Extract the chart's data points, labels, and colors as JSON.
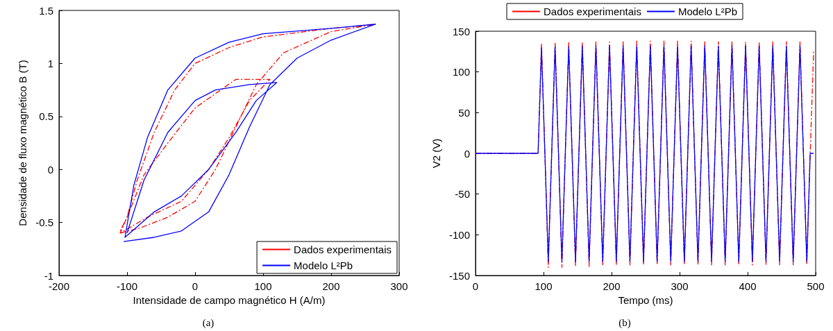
{
  "chart_data": [
    {
      "type": "line",
      "xlabel": "Intensidade de campo magnético H (A/m)",
      "ylabel": "Densidade de fluxo magnético B (T)",
      "annotations": [
        "(a)"
      ],
      "xlim": [
        -200,
        300
      ],
      "xticks": [
        -200,
        -100,
        0,
        100,
        200,
        300
      ],
      "ylim": [
        -1,
        1.5
      ],
      "yticks": [
        -1,
        -0.5,
        0,
        0.5,
        1,
        1.5
      ],
      "grid": false,
      "legend": "bottom right",
      "marker": "none",
      "series": [
        {
          "name": "Dados experimentais",
          "color": "#ff0000",
          "line_style": "dashed",
          "x": [
            -110,
            -80,
            -40,
            0,
            30,
            60,
            90,
            130,
            200,
            265,
            200,
            100,
            50,
            0,
            -30,
            -60,
            -85,
            -100,
            -110,
            -70,
            -20,
            20,
            50,
            80,
            110,
            60,
            0,
            -40,
            -75,
            -100,
            -110
          ],
          "values": [
            -0.6,
            -0.55,
            -0.45,
            -0.3,
            0,
            0.4,
            0.8,
            1.1,
            1.3,
            1.37,
            1.33,
            1.25,
            1.15,
            1.0,
            0.75,
            0.35,
            -0.1,
            -0.45,
            -0.6,
            -0.45,
            -0.3,
            0,
            0.3,
            0.65,
            0.85,
            0.85,
            0.58,
            0.25,
            -0.05,
            -0.45,
            -0.58
          ]
        },
        {
          "name": "Modelo L²Pb",
          "color": "#0000ff",
          "line_style": "solid",
          "x": [
            -105,
            -60,
            -20,
            20,
            50,
            80,
            110,
            150,
            200,
            265,
            200,
            100,
            50,
            0,
            -40,
            -70,
            -90,
            -103,
            -60,
            -20,
            20,
            60,
            90,
            120,
            80,
            30,
            0,
            -40,
            -75,
            -100
          ],
          "values": [
            -0.68,
            -0.64,
            -0.58,
            -0.4,
            -0.05,
            0.4,
            0.8,
            1.05,
            1.22,
            1.37,
            1.33,
            1.28,
            1.2,
            1.05,
            0.75,
            0.3,
            -0.15,
            -0.64,
            -0.4,
            -0.25,
            0,
            0.35,
            0.65,
            0.82,
            0.8,
            0.75,
            0.65,
            0.35,
            -0.1,
            -0.6
          ]
        }
      ]
    },
    {
      "type": "line",
      "xlabel": "Tempo (ms)",
      "ylabel": "V2 (V)",
      "annotations": [
        "(b)"
      ],
      "xlim": [
        0,
        500
      ],
      "xticks": [
        0,
        100,
        200,
        300,
        400,
        500
      ],
      "ylim": [
        -150,
        150
      ],
      "yticks": [
        -150,
        -100,
        -50,
        0,
        50,
        100,
        150
      ],
      "grid": false,
      "legend": "top",
      "marker": "none",
      "x": [
        0,
        92,
        97,
        102,
        107,
        112,
        117,
        122,
        127,
        132,
        137,
        142,
        147,
        152,
        157,
        162,
        167,
        172,
        177,
        182,
        187,
        192,
        197,
        202,
        207,
        212,
        217,
        222,
        227,
        232,
        237,
        242,
        247,
        252,
        257,
        262,
        267,
        272,
        277,
        282,
        287,
        292,
        297,
        302,
        307,
        312,
        317,
        322,
        327,
        332,
        337,
        342,
        347,
        352,
        357,
        362,
        367,
        372,
        377,
        382,
        387,
        392,
        397,
        402,
        407,
        412,
        417,
        422,
        427,
        432,
        437,
        442,
        447,
        452,
        457,
        462,
        467,
        472,
        477,
        482,
        487,
        492,
        497
      ],
      "series": [
        {
          "name": "Dados experimentais",
          "color": "#ff0000",
          "line_style": "dashed",
          "values": [
            0,
            0,
            135,
            0,
            -140,
            0,
            136,
            0,
            -140,
            0,
            136,
            0,
            -139,
            0,
            137,
            0,
            -139,
            0,
            137,
            0,
            -138,
            0,
            137,
            0,
            -138,
            0,
            137,
            0,
            -137,
            0,
            138,
            0,
            -137,
            0,
            138,
            0,
            -137,
            0,
            138,
            0,
            -137,
            0,
            138,
            0,
            -137,
            0,
            138,
            0,
            -137,
            0,
            137,
            0,
            -137,
            0,
            137,
            0,
            -137,
            0,
            137,
            0,
            -137,
            0,
            137,
            0,
            -137,
            0,
            137,
            0,
            -137,
            0,
            137,
            0,
            -137,
            0,
            137,
            0,
            -137,
            0,
            137,
            0,
            -137,
            0,
            125
          ]
        },
        {
          "name": "Modelo L²Pb",
          "color": "#0000ff",
          "line_style": "solid",
          "values": [
            0,
            0,
            130,
            0,
            -133,
            0,
            131,
            0,
            -133,
            0,
            131,
            0,
            -133,
            0,
            132,
            0,
            -133,
            0,
            132,
            0,
            -133,
            0,
            132,
            0,
            -133,
            0,
            132,
            0,
            -133,
            0,
            132,
            0,
            -133,
            0,
            132,
            0,
            -133,
            0,
            132,
            0,
            -133,
            0,
            132,
            0,
            -133,
            0,
            132,
            0,
            -133,
            0,
            132,
            0,
            -133,
            0,
            132,
            0,
            -133,
            0,
            132,
            0,
            -133,
            0,
            132,
            0,
            -133,
            0,
            132,
            0,
            -133,
            0,
            132,
            0,
            -133,
            0,
            132,
            0,
            -133,
            0,
            132,
            0,
            -133,
            0,
            0
          ]
        }
      ]
    }
  ]
}
